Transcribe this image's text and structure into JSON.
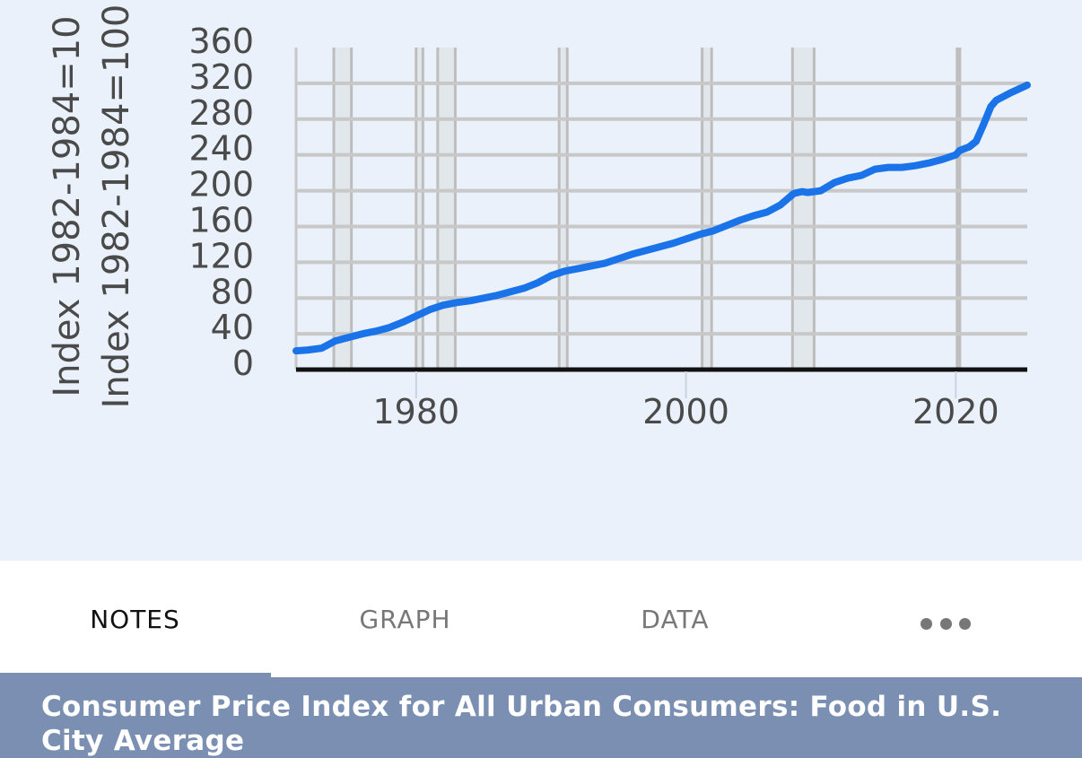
{
  "tabs": [
    {
      "label": "NOTES",
      "active": true
    },
    {
      "label": "GRAPH",
      "active": false
    },
    {
      "label": "DATA",
      "active": false
    }
  ],
  "more_icon": "more-horizontal-icon",
  "series_title": "Consumer Price Index for All Urban Consumers: Food in U.S. City Average",
  "colors": {
    "chart_background": "#eaf1fa",
    "line": "#1a73e8",
    "title_bar": "#7a8fb2",
    "recession_shade": "#e2e7ec"
  },
  "chart_data": {
    "type": "line",
    "title": "",
    "xlabel": "",
    "ylabel": "Index 1982-1984=100",
    "xlim": [
      1971.1,
      2025.3
    ],
    "ylim": [
      -20,
      360
    ],
    "yticks": [
      0,
      40,
      80,
      120,
      160,
      200,
      240,
      280,
      320,
      360
    ],
    "ytick_labels": [
      "0",
      "40",
      "80",
      "120",
      "160",
      "200",
      "240",
      "280",
      "320",
      "360"
    ],
    "xticks": [
      1980,
      2000,
      2020
    ],
    "xtick_labels": [
      "1980",
      "2000",
      "2020"
    ],
    "grid": true,
    "recessions": [
      [
        1973.9,
        1975.2
      ],
      [
        1980.0,
        1980.5
      ],
      [
        1981.6,
        1982.9
      ],
      [
        1990.6,
        1991.2
      ],
      [
        2001.2,
        2001.9
      ],
      [
        2007.9,
        2009.5
      ],
      [
        2020.1,
        2020.3
      ]
    ],
    "series": [
      {
        "x": [
          1971.1,
          1972.0,
          1973.0,
          1973.5,
          1974.0,
          1975.0,
          1976.0,
          1977.0,
          1978.0,
          1979.0,
          1980.0,
          1981.0,
          1982.0,
          1983.0,
          1984.0,
          1985.0,
          1986.0,
          1987.0,
          1988.0,
          1989.0,
          1990.0,
          1991.0,
          1992.0,
          1993.0,
          1994.0,
          1995.0,
          1996.0,
          1997.0,
          1998.0,
          1999.0,
          2000.0,
          2001.0,
          2002.0,
          2003.0,
          2004.0,
          2005.0,
          2006.0,
          2007.0,
          2008.0,
          2008.6,
          2009.0,
          2010.0,
          2011.0,
          2012.0,
          2013.0,
          2014.0,
          2015.0,
          2016.0,
          2017.0,
          2018.0,
          2019.0,
          2020.0,
          2020.3,
          2021.0,
          2021.5,
          2022.0,
          2022.6,
          2023.0,
          2024.0,
          2025.3
        ],
        "values": [
          21,
          22,
          24,
          28,
          32,
          36,
          40,
          43,
          47,
          53,
          60,
          67,
          72,
          75,
          77,
          80,
          83,
          87,
          91,
          97,
          105,
          110,
          113,
          116,
          119,
          124,
          129,
          133,
          137,
          141,
          146,
          151,
          155,
          161,
          167,
          172,
          176,
          184,
          197,
          199,
          198,
          200,
          209,
          214,
          217,
          224,
          226,
          226,
          228,
          231,
          235,
          240,
          245,
          249,
          255,
          272,
          294,
          301,
          309,
          318
        ]
      }
    ]
  }
}
